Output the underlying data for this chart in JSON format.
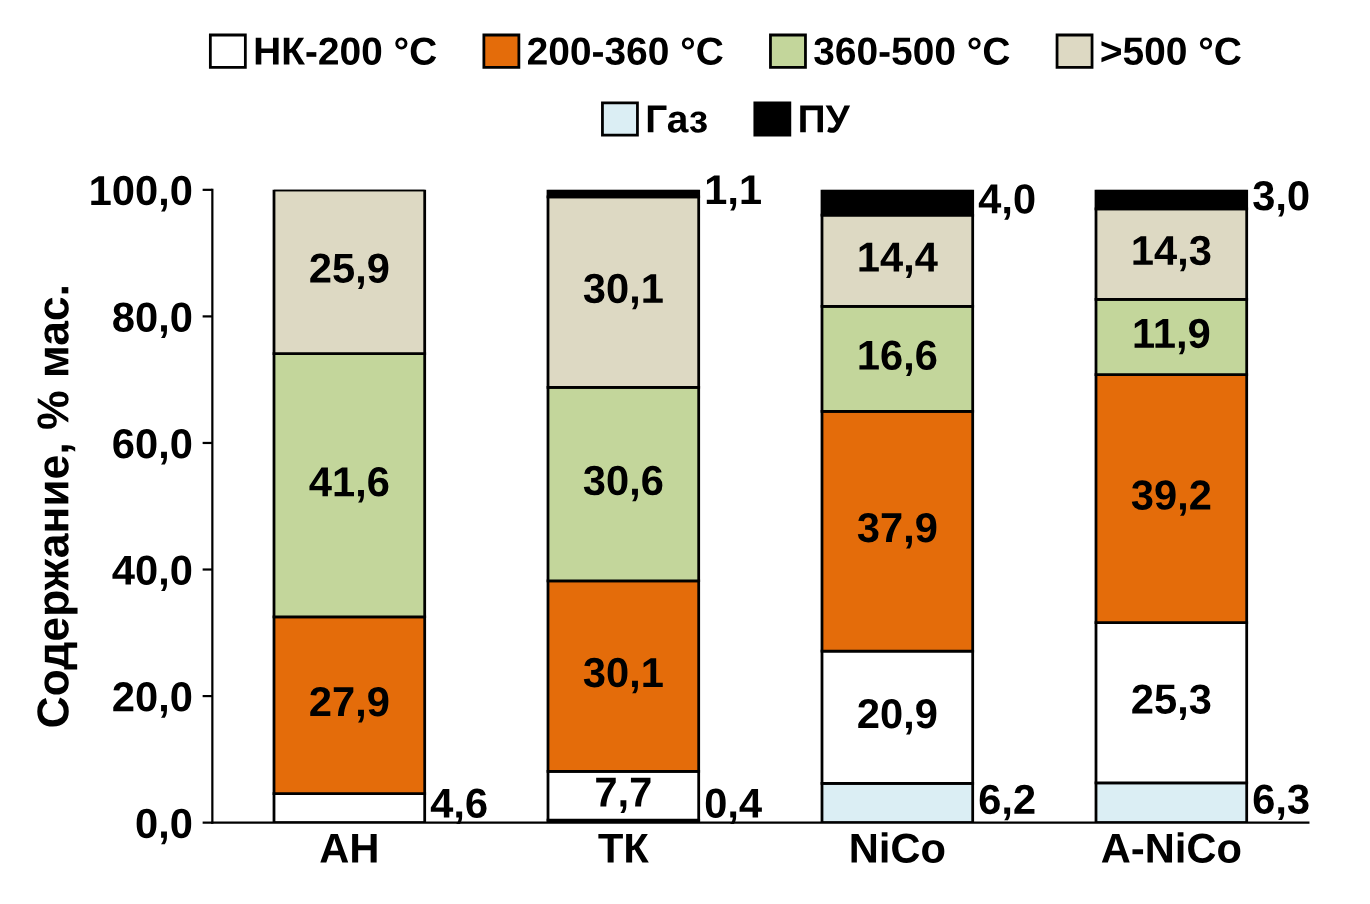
{
  "chart_data": {
    "type": "bar",
    "stacked": true,
    "ylabel": "Содержание, % мас.",
    "categories": [
      "АН",
      "ТК",
      "NiCo",
      "A-NiCo"
    ],
    "series": [
      {
        "name": "Газ",
        "color": "#dbeef4",
        "values": [
          0,
          0.4,
          6.2,
          6.3
        ],
        "value_labels": [
          null,
          "0,4",
          "6,2",
          "6,3"
        ]
      },
      {
        "name": "НК-200 °С",
        "color": "#ffffff",
        "values": [
          4.6,
          7.7,
          20.9,
          25.3
        ],
        "value_labels": [
          "4,6",
          "7,7",
          "20,9",
          "25,3"
        ]
      },
      {
        "name": "200-360 °С",
        "color": "#e46c0a",
        "values": [
          27.9,
          30.1,
          37.9,
          39.2
        ],
        "value_labels": [
          "27,9",
          "30,1",
          "37,9",
          "39,2"
        ]
      },
      {
        "name": "360-500 °С",
        "color": "#c3d69b",
        "values": [
          41.6,
          30.6,
          16.6,
          11.9
        ],
        "value_labels": [
          "41,6",
          "30,6",
          "16,6",
          "11,9"
        ]
      },
      {
        "name": ">500 °С",
        "color": "#ddd9c3",
        "values": [
          25.9,
          30.1,
          14.4,
          14.3
        ],
        "value_labels": [
          "25,9",
          "30,1",
          "14,4",
          "14,3"
        ]
      },
      {
        "name": "ПУ",
        "color": "#000000",
        "values": [
          0,
          1.1,
          4.0,
          3.0
        ],
        "value_labels": [
          null,
          "1,1",
          "4,0",
          "3,0"
        ]
      }
    ],
    "ylim": [
      0,
      100
    ],
    "yticks": [
      {
        "value": 0,
        "label": "0,0"
      },
      {
        "value": 20,
        "label": "20,0"
      },
      {
        "value": 40,
        "label": "40,0"
      },
      {
        "value": 60,
        "label": "60,0"
      },
      {
        "value": 80,
        "label": "80,0"
      },
      {
        "value": 100,
        "label": "100,0"
      }
    ],
    "grid": false,
    "legend": "top"
  }
}
